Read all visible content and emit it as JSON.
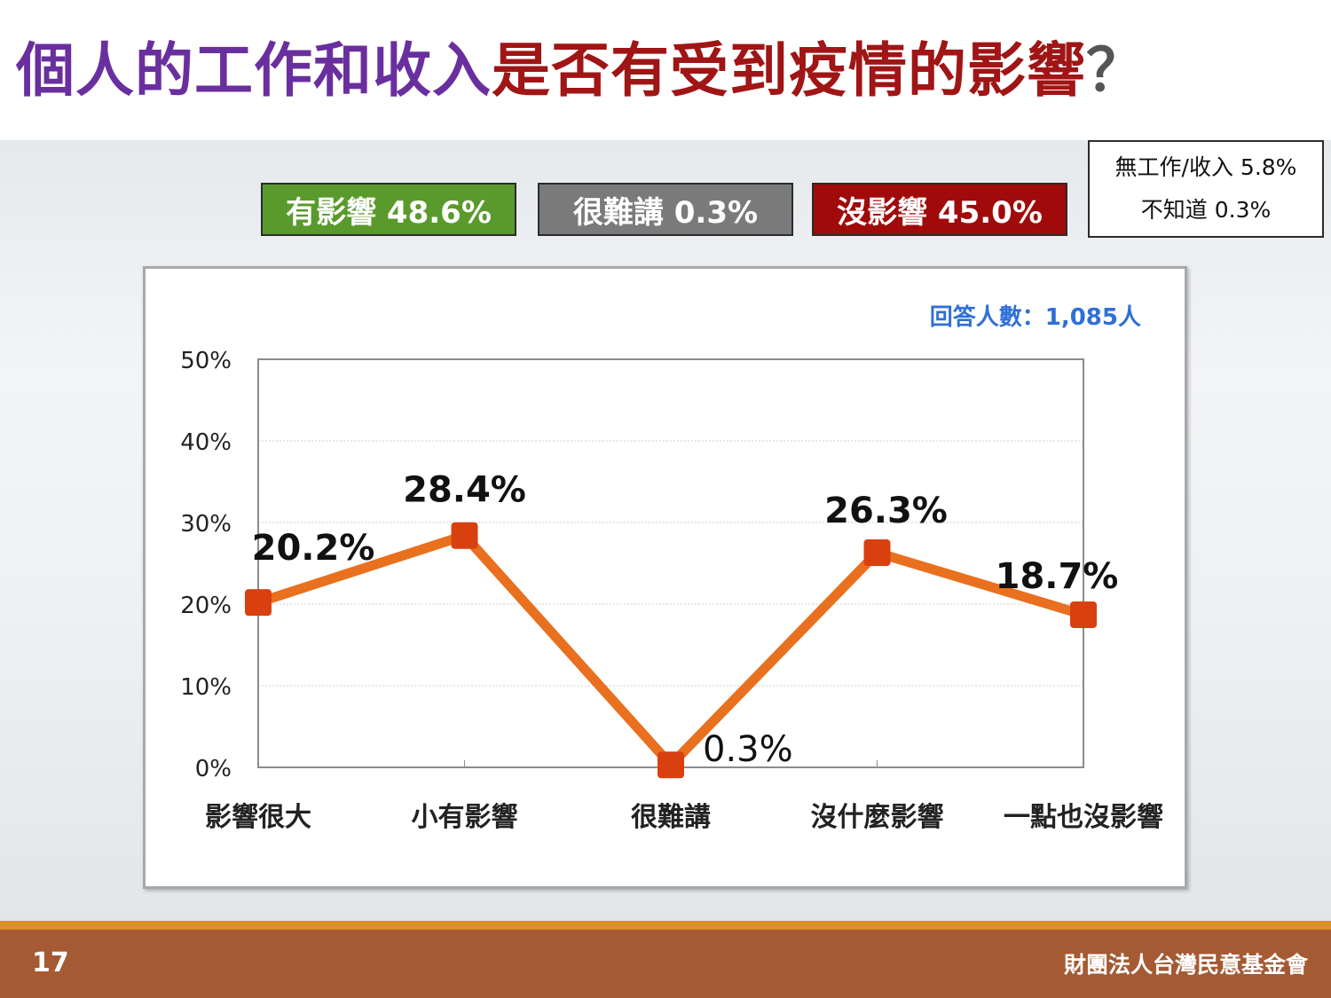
{
  "title": {
    "part1": "個人的工作和收入",
    "part2": "是否有受到疫情的影響",
    "part3": "？"
  },
  "summary": {
    "affected": "有影響 48.6%",
    "hard_to_say": "很難講 0.3%",
    "not_affected": "沒影響 45.0%"
  },
  "note": {
    "line1": "無工作/收入 5.8%",
    "line2": "不知道 0.3%"
  },
  "colors": {
    "title_purple": "#6a2f9e",
    "title_red": "#a01515",
    "affected_green": "#5a9a2c",
    "hard_gray": "#7a7a7a",
    "not_affected_red": "#a00a0a",
    "line_orange": "#e8701e",
    "marker_red": "#d94010",
    "respondents_blue": "#2f6fd6",
    "footer_brown": "#a55a34",
    "footer_stripe": "#d98f2a"
  },
  "chart_data": {
    "type": "line",
    "categories": [
      "影響很大",
      "小有影響",
      "很難講",
      "沒什麼影響",
      "一點也沒影響"
    ],
    "values": [
      20.2,
      28.4,
      0.3,
      26.3,
      18.7
    ],
    "data_labels": [
      "20.2%",
      "28.4%",
      "0.3%",
      "26.3%",
      "18.7%"
    ],
    "y_ticks": [
      "0%",
      "10%",
      "20%",
      "30%",
      "40%",
      "50%"
    ],
    "ylim": [
      0,
      50
    ],
    "grid": true,
    "annotation": "回答人數：1,085人"
  },
  "footer": {
    "page": "17",
    "org": "財團法人台灣民意基金會"
  }
}
